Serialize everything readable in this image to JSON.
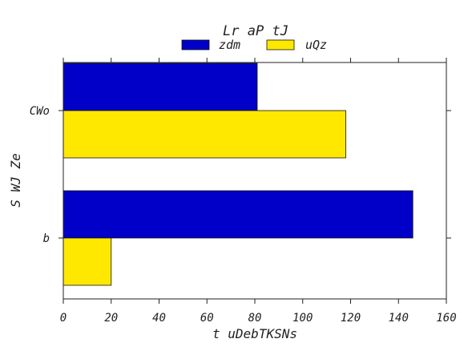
{
  "colors": {
    "series_1": "#0000c8",
    "series_2": "#ffe800",
    "axis": "#222222",
    "bar_edge": "#111111",
    "background": "#ffffff"
  },
  "chart_data": {
    "type": "bar",
    "orientation": "horizontal",
    "title": "Lr aP tJ",
    "xlabel": "t uDebTKSNs",
    "ylabel": "S WJ Ze",
    "categories": [
      "CWo",
      "b"
    ],
    "series": [
      {
        "name": "zdm",
        "values": [
          81,
          146
        ]
      },
      {
        "name": "uQz",
        "values": [
          118,
          20
        ]
      }
    ],
    "xlim": [
      0,
      160
    ],
    "xticks": [
      0,
      20,
      40,
      60,
      80,
      100,
      120,
      140,
      160
    ],
    "grid": false,
    "legend_position": "top-center"
  }
}
